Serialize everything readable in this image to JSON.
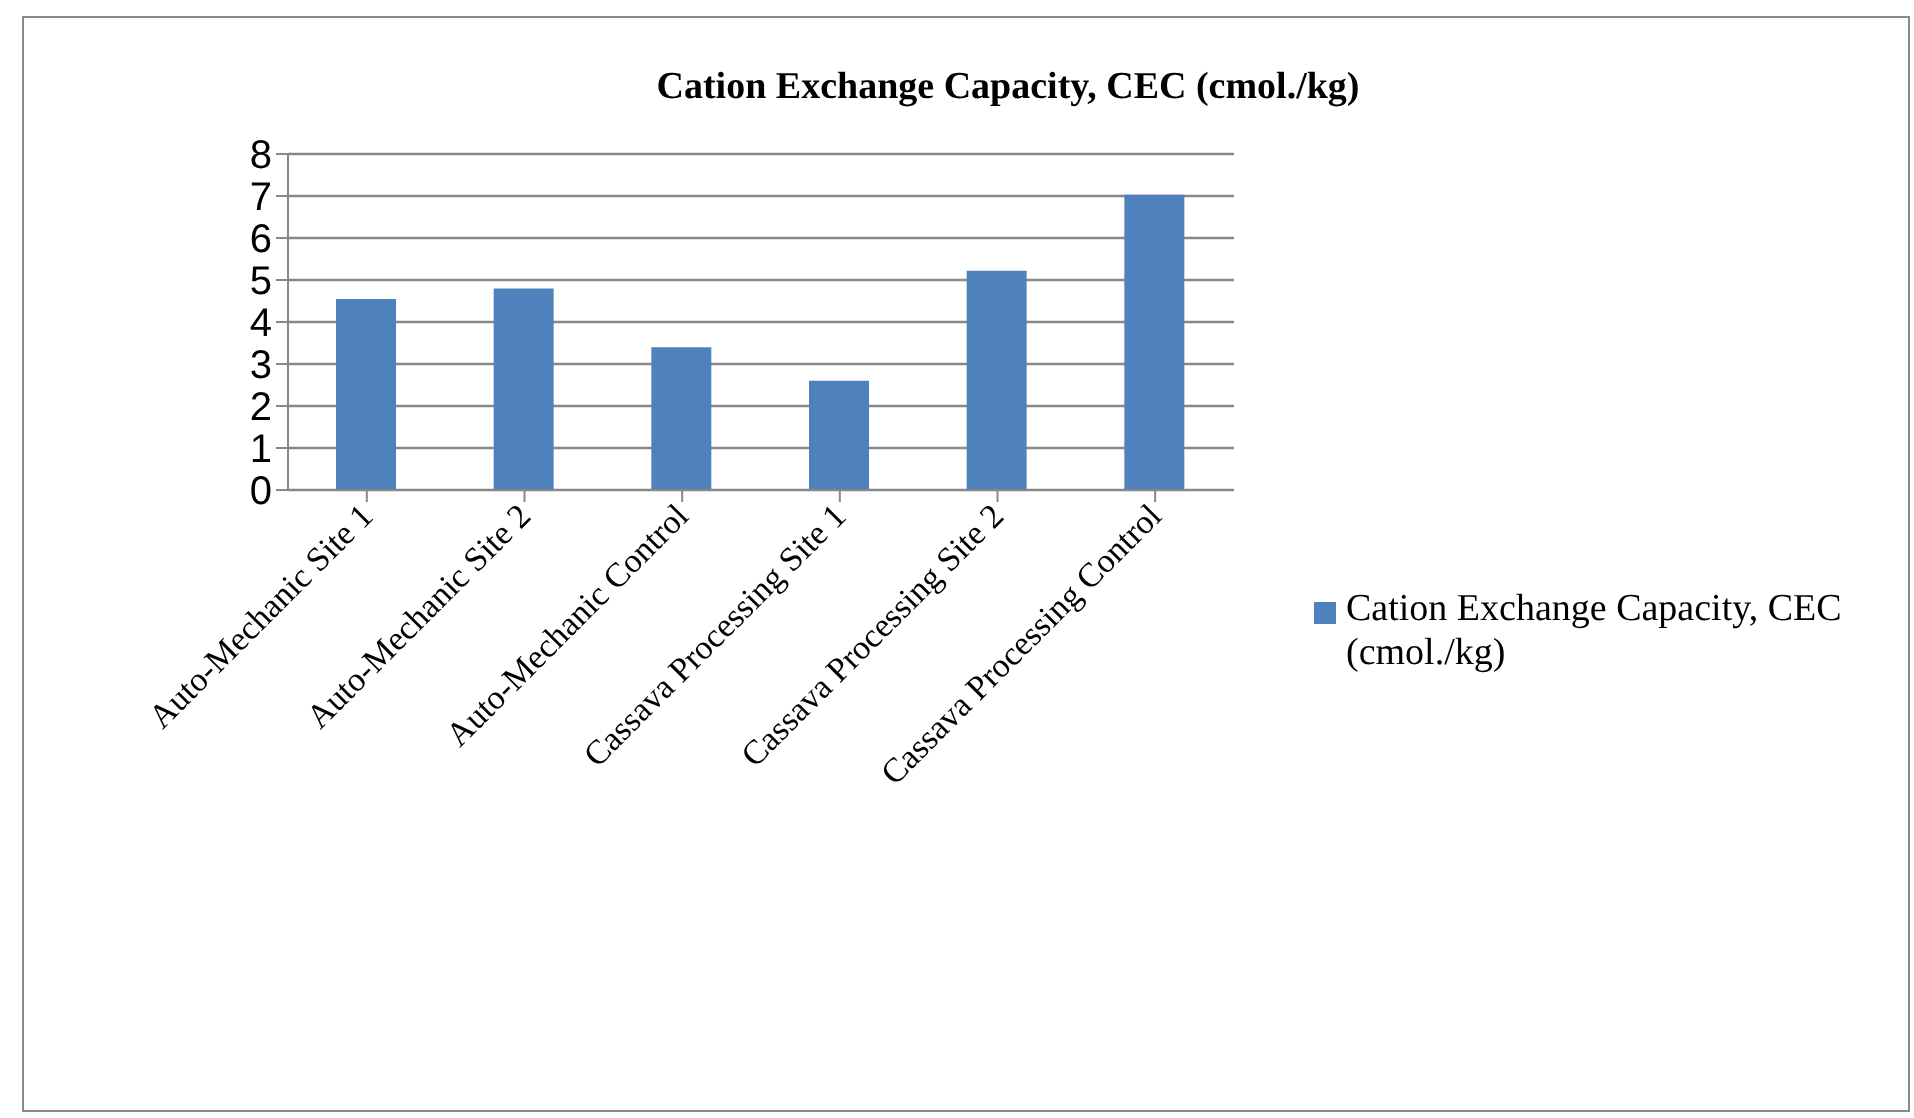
{
  "chart_data": {
    "type": "bar",
    "title": "Cation Exchange Capacity, CEC (cmol./kg)",
    "categories": [
      "Auto-Mechanic Site 1",
      "Auto-Mechanic Site 2",
      "Auto-Mechanic Control",
      "Cassava Processing Site 1",
      "Cassava Processing Site 2",
      "Cassava Processing Control"
    ],
    "series": [
      {
        "name": "Cation Exchange Capacity, CEC (cmol./kg)",
        "color": "#4f81bd",
        "values": [
          4.55,
          4.8,
          3.4,
          2.6,
          5.22,
          7.03
        ]
      }
    ],
    "ylim": [
      0,
      8
    ],
    "yticks": [
      0,
      1,
      2,
      3,
      4,
      5,
      6,
      7,
      8
    ],
    "grid": "y",
    "legend": "right"
  }
}
